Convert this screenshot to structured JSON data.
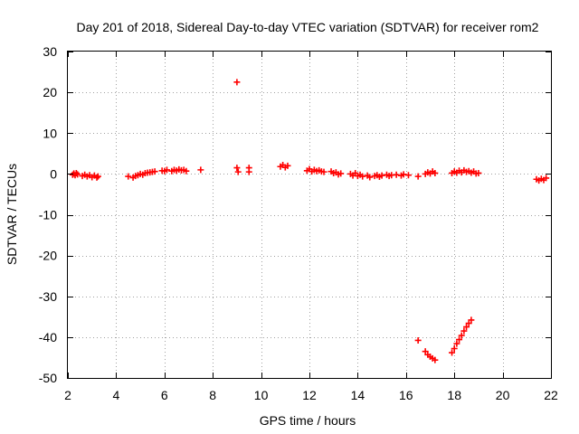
{
  "chart_data": {
    "type": "scatter",
    "title": "Day 201 of 2018, Sidereal Day-to-day VTEC variation (SDTVAR) for receiver rom2",
    "xlabel": "GPS time / hours",
    "ylabel": "SDTVAR / TECUs",
    "xlim": [
      2,
      22
    ],
    "ylim": [
      -50,
      30
    ],
    "xticks": [
      2,
      4,
      6,
      8,
      10,
      12,
      14,
      16,
      18,
      20,
      22
    ],
    "yticks": [
      -50,
      -40,
      -30,
      -20,
      -10,
      0,
      10,
      20,
      30
    ],
    "xtick_labels": [
      "2",
      "4",
      "6",
      "8",
      "10",
      "12",
      "14",
      "16",
      "18",
      "20",
      "22"
    ],
    "ytick_labels": [
      "-50",
      "-40",
      "-30",
      "-20",
      "-10",
      "0",
      "10",
      "20",
      "30"
    ],
    "grid": true,
    "marker": "+",
    "color": "#ff0000",
    "series": [
      {
        "name": "SDTVAR",
        "points": [
          [
            2.2,
            -0.2
          ],
          [
            2.25,
            0.1
          ],
          [
            2.3,
            -0.3
          ],
          [
            2.35,
            0.2
          ],
          [
            2.4,
            -0.1
          ],
          [
            2.6,
            -0.5
          ],
          [
            2.7,
            -0.2
          ],
          [
            2.8,
            -0.6
          ],
          [
            2.9,
            -0.3
          ],
          [
            3.0,
            -0.8
          ],
          [
            3.1,
            -0.4
          ],
          [
            3.2,
            -0.9
          ],
          [
            3.25,
            -0.6
          ],
          [
            4.5,
            -0.6
          ],
          [
            4.7,
            -0.9
          ],
          [
            4.8,
            -0.5
          ],
          [
            4.9,
            -0.3
          ],
          [
            5.0,
            0.0
          ],
          [
            5.1,
            -0.2
          ],
          [
            5.2,
            0.2
          ],
          [
            5.3,
            0.3
          ],
          [
            5.4,
            0.4
          ],
          [
            5.5,
            0.5
          ],
          [
            5.6,
            0.6
          ],
          [
            5.9,
            0.8
          ],
          [
            6.0,
            0.7
          ],
          [
            6.1,
            1.0
          ],
          [
            6.3,
            0.7
          ],
          [
            6.4,
            1.0
          ],
          [
            6.5,
            0.8
          ],
          [
            6.6,
            1.1
          ],
          [
            6.7,
            0.9
          ],
          [
            6.8,
            1.0
          ],
          [
            6.9,
            0.7
          ],
          [
            7.5,
            1.0
          ],
          [
            9.0,
            22.5
          ],
          [
            9.0,
            1.5
          ],
          [
            9.05,
            0.5
          ],
          [
            9.5,
            1.5
          ],
          [
            9.5,
            0.5
          ],
          [
            10.8,
            1.8
          ],
          [
            10.9,
            2.2
          ],
          [
            11.0,
            1.6
          ],
          [
            11.1,
            2.0
          ],
          [
            11.9,
            0.8
          ],
          [
            12.0,
            1.2
          ],
          [
            12.1,
            0.6
          ],
          [
            12.2,
            1.0
          ],
          [
            12.3,
            0.7
          ],
          [
            12.4,
            0.9
          ],
          [
            12.5,
            0.6
          ],
          [
            12.6,
            0.5
          ],
          [
            12.9,
            0.6
          ],
          [
            13.0,
            0.2
          ],
          [
            13.1,
            0.4
          ],
          [
            13.2,
            -0.1
          ],
          [
            13.3,
            0.1
          ],
          [
            13.7,
            0.0
          ],
          [
            13.8,
            -0.4
          ],
          [
            13.9,
            0.2
          ],
          [
            14.0,
            -0.5
          ],
          [
            14.1,
            -0.2
          ],
          [
            14.2,
            -0.6
          ],
          [
            14.4,
            -0.4
          ],
          [
            14.5,
            -0.8
          ],
          [
            14.7,
            -0.5
          ],
          [
            14.8,
            -0.3
          ],
          [
            14.9,
            -0.7
          ],
          [
            15.0,
            -0.4
          ],
          [
            15.2,
            -0.2
          ],
          [
            15.3,
            -0.5
          ],
          [
            15.4,
            -0.3
          ],
          [
            15.6,
            -0.2
          ],
          [
            15.8,
            -0.4
          ],
          [
            15.9,
            -0.1
          ],
          [
            16.1,
            -0.3
          ],
          [
            16.5,
            -0.6
          ],
          [
            16.8,
            0.0
          ],
          [
            16.9,
            0.4
          ],
          [
            17.0,
            0.1
          ],
          [
            17.1,
            0.6
          ],
          [
            17.2,
            0.2
          ],
          [
            16.5,
            -40.8
          ],
          [
            16.8,
            -43.5
          ],
          [
            16.9,
            -44.3
          ],
          [
            17.0,
            -44.8
          ],
          [
            17.1,
            -45.2
          ],
          [
            17.2,
            -45.6
          ],
          [
            17.9,
            -43.8
          ],
          [
            18.0,
            -42.8
          ],
          [
            18.1,
            -41.6
          ],
          [
            18.2,
            -40.6
          ],
          [
            18.3,
            -39.6
          ],
          [
            18.4,
            -38.5
          ],
          [
            18.5,
            -37.5
          ],
          [
            18.6,
            -36.6
          ],
          [
            18.7,
            -35.8
          ],
          [
            17.9,
            0.2
          ],
          [
            18.0,
            0.6
          ],
          [
            18.1,
            0.3
          ],
          [
            18.2,
            0.8
          ],
          [
            18.3,
            0.4
          ],
          [
            18.4,
            0.9
          ],
          [
            18.5,
            0.5
          ],
          [
            18.6,
            0.7
          ],
          [
            18.7,
            0.3
          ],
          [
            18.8,
            0.6
          ],
          [
            18.9,
            0.1
          ],
          [
            19.0,
            0.2
          ],
          [
            21.4,
            -1.3
          ],
          [
            21.5,
            -1.6
          ],
          [
            21.6,
            -1.2
          ],
          [
            21.7,
            -1.5
          ],
          [
            21.8,
            -1.0
          ]
        ]
      }
    ]
  }
}
